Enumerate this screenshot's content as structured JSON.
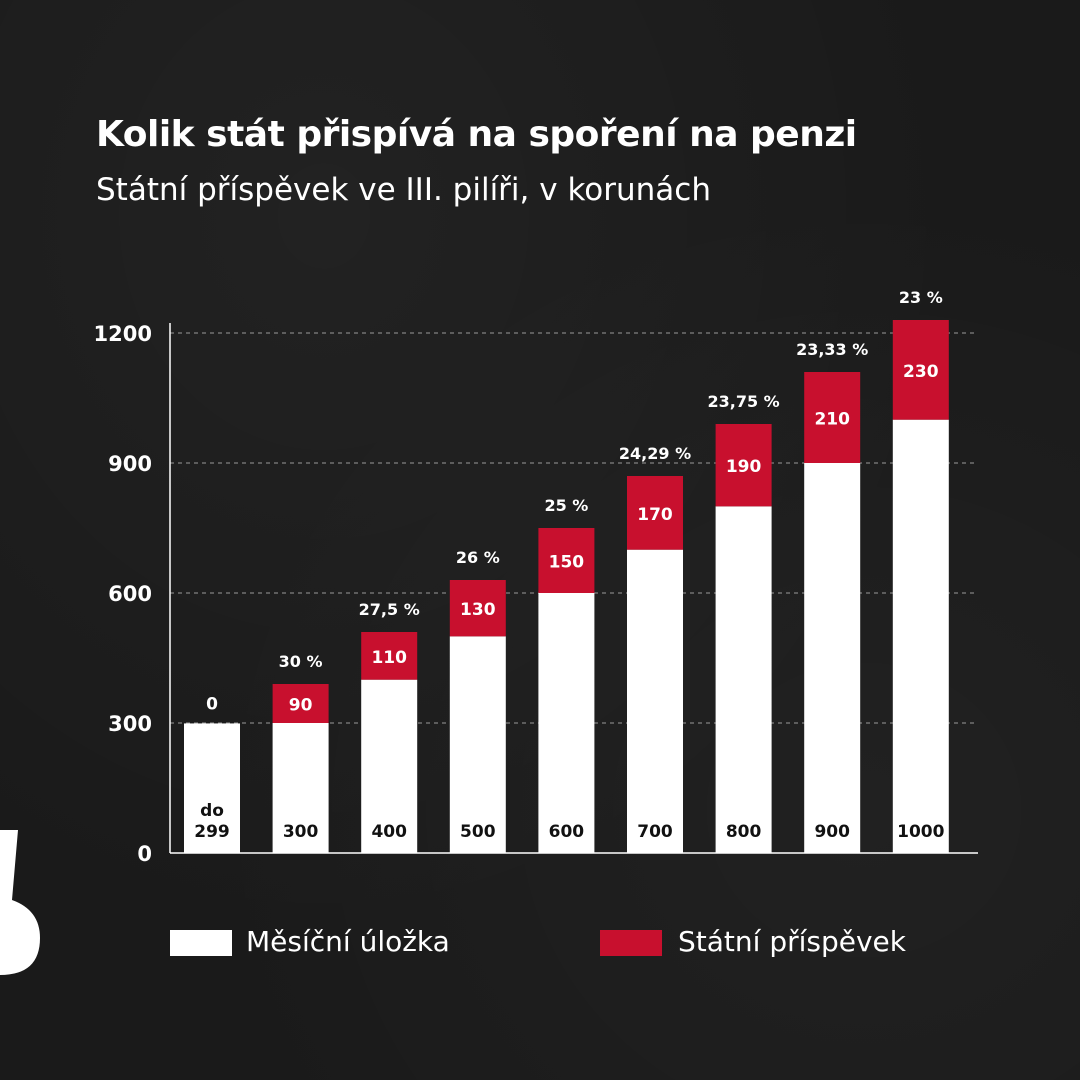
{
  "header": {
    "title": "Kolik stát přispívá na spoření na penzi",
    "subtitle": "Státní příspěvek ve III. pilíři, v korunách"
  },
  "legend": {
    "deposit_label": "Měsíční úložka",
    "contribution_label": "Státní příspěvek"
  },
  "colors": {
    "deposit": "#ffffff",
    "contribution": "#c8102e",
    "background": "#1a1a1a"
  },
  "chart_data": {
    "type": "bar",
    "stacked": true,
    "categories": [
      "do 299",
      "300",
      "400",
      "500",
      "600",
      "700",
      "800",
      "900",
      "1000"
    ],
    "series": [
      {
        "name": "Měsíční úložka",
        "values": [
          299,
          300,
          400,
          500,
          600,
          700,
          800,
          900,
          1000
        ]
      },
      {
        "name": "Státní příspěvek",
        "values": [
          0,
          90,
          110,
          130,
          150,
          170,
          190,
          210,
          230
        ]
      }
    ],
    "category_labels": [
      [
        "do",
        "299"
      ],
      [
        "300"
      ],
      [
        "400"
      ],
      [
        "500"
      ],
      [
        "600"
      ],
      [
        "700"
      ],
      [
        "800"
      ],
      [
        "900"
      ],
      [
        "1000"
      ]
    ],
    "contribution_labels": [
      "0",
      "90",
      "110",
      "130",
      "150",
      "170",
      "190",
      "210",
      "230"
    ],
    "percent_labels": [
      "",
      "30 %",
      "27,5 %",
      "26 %",
      "25 %",
      "24,29 %",
      "23,75 %",
      "23,33 %",
      "23 %"
    ],
    "yticks": [
      0,
      300,
      600,
      900,
      1200
    ],
    "ylim": [
      0,
      1230
    ],
    "grid": true,
    "legend_position": "bottom"
  }
}
